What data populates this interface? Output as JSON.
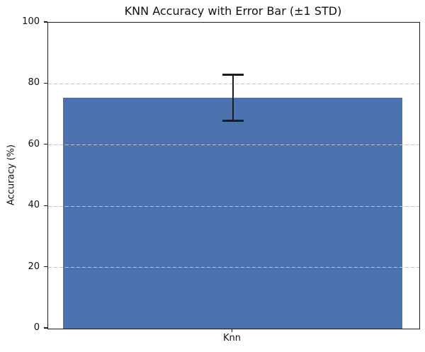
{
  "figure": {
    "background": "#ffffff"
  },
  "chart_data": {
    "type": "bar",
    "title": "KNN Accuracy with Error Bar (±1 STD)",
    "xlabel": "",
    "ylabel": "Accuracy (%)",
    "categories": [
      "Knn"
    ],
    "values": [
      75.5
    ],
    "error_std": [
      7.5
    ],
    "error_upper": [
      83
    ],
    "error_lower": [
      68
    ],
    "ylim": [
      0,
      100
    ],
    "yticks": [
      0,
      20,
      40,
      60,
      80,
      100
    ],
    "grid": {
      "axis": "y",
      "style": "dashed",
      "color": "#c7c7c7",
      "on_values": [
        20,
        40,
        60,
        80
      ],
      "drawn_above_bar": true
    },
    "legend_position": "none",
    "bar_color": "#4C72B0",
    "error_bar_color": "#1c1c1c",
    "spine_color": "#1a1a1a",
    "text_color": "#111111"
  }
}
